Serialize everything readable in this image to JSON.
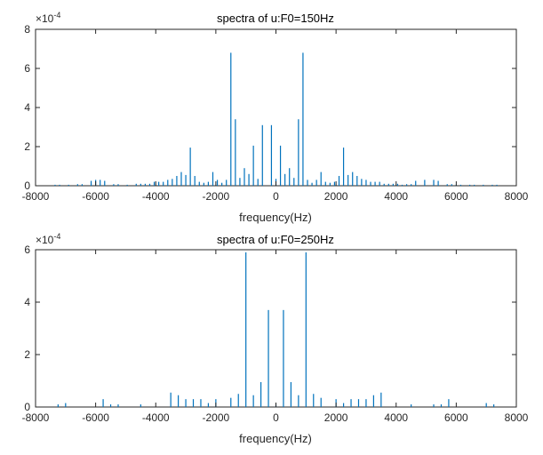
{
  "chart_data": [
    {
      "type": "stem",
      "title": "spectra of u:F0=150Hz",
      "xlabel": "frequency(Hz)",
      "ylabel": "",
      "xlim": [
        -8000,
        8000
      ],
      "ylim": [
        0,
        8
      ],
      "y_multiplier": "x10^-4",
      "xticks": [
        -8000,
        -6000,
        -4000,
        -2000,
        0,
        2000,
        4000,
        6000,
        8000
      ],
      "yticks": [
        0,
        2,
        4,
        6,
        8
      ],
      "color": "#0072BD",
      "x": [
        -7350,
        -7200,
        -6900,
        -6600,
        -6450,
        -6150,
        -6000,
        -5850,
        -5700,
        -5400,
        -5250,
        -4950,
        -4650,
        -4500,
        -4350,
        -4200,
        -4050,
        -3900,
        -3750,
        -3600,
        -3450,
        -3300,
        -3150,
        -3000,
        -2850,
        -2700,
        -2550,
        -2400,
        -2250,
        -2100,
        -1950,
        -1800,
        -1650,
        -1500,
        -1350,
        -1200,
        -1050,
        -900,
        -750,
        -600,
        -450,
        -300,
        -150,
        0,
        150,
        300,
        450,
        600,
        750,
        900,
        1050,
        1200,
        1350,
        1500,
        1650,
        1800,
        1950,
        2100,
        2250,
        2400,
        2550,
        2700,
        2850,
        3000,
        3150,
        3300,
        3450,
        3600,
        3750,
        3900,
        4050,
        4200,
        4350,
        4500,
        4650,
        4950,
        5250,
        5400,
        5700,
        5850,
        6000,
        6150,
        6450,
        6600,
        6900,
        7200,
        7350
      ],
      "values": [
        0.05,
        0.05,
        0.05,
        0.08,
        0.08,
        0.25,
        0.3,
        0.3,
        0.25,
        0.08,
        0.08,
        0.05,
        0.1,
        0.1,
        0.1,
        0.1,
        0.2,
        0.2,
        0.2,
        0.3,
        0.35,
        0.5,
        0.7,
        0.55,
        1.95,
        0.5,
        0.2,
        0.15,
        0.2,
        0.7,
        0.3,
        0.15,
        0.3,
        6.8,
        3.4,
        0.4,
        0.9,
        0.6,
        2.05,
        0.35,
        3.1,
        0,
        3.1,
        0.35,
        2.05,
        0.6,
        0.9,
        0.4,
        3.4,
        6.8,
        0.3,
        0.15,
        0.3,
        0.7,
        0.2,
        0.15,
        0.2,
        0.5,
        1.95,
        0.55,
        0.7,
        0.5,
        0.35,
        0.3,
        0.2,
        0.2,
        0.2,
        0.1,
        0.1,
        0.1,
        0.1,
        0.05,
        0.08,
        0.08,
        0.25,
        0.3,
        0.3,
        0.25,
        0.08,
        0.08,
        0.05,
        0.05,
        0.05,
        0.05,
        0.05,
        0.05,
        0.05
      ]
    },
    {
      "type": "stem",
      "title": "spectra of u:F0=250Hz",
      "xlabel": "frequency(Hz)",
      "ylabel": "",
      "xlim": [
        -8000,
        8000
      ],
      "ylim": [
        0,
        6
      ],
      "y_multiplier": "x10^-4",
      "xticks": [
        -8000,
        -6000,
        -4000,
        -2000,
        0,
        2000,
        4000,
        6000,
        8000
      ],
      "yticks": [
        0,
        2,
        4,
        6
      ],
      "color": "#0072BD",
      "x": [
        -7250,
        -7000,
        -5750,
        -5500,
        -5250,
        -4500,
        -3500,
        -3250,
        -3000,
        -2750,
        -2500,
        -2250,
        -2000,
        -1500,
        -1250,
        -1000,
        -750,
        -500,
        -250,
        0,
        250,
        500,
        750,
        1000,
        1250,
        1500,
        2000,
        2250,
        2500,
        2750,
        3000,
        3250,
        3500,
        4500,
        5250,
        5500,
        5750,
        7000,
        7250
      ],
      "values": [
        0.1,
        0.15,
        0.3,
        0.1,
        0.1,
        0.1,
        0.55,
        0.45,
        0.3,
        0.3,
        0.3,
        0.15,
        0.3,
        0.35,
        0.5,
        5.9,
        0.45,
        0.95,
        3.7,
        0.1,
        3.7,
        0.95,
        0.45,
        5.9,
        0.5,
        0.35,
        0.3,
        0.15,
        0.3,
        0.3,
        0.3,
        0.45,
        0.55,
        0.1,
        0.1,
        0.1,
        0.3,
        0.15,
        0.1
      ]
    }
  ]
}
